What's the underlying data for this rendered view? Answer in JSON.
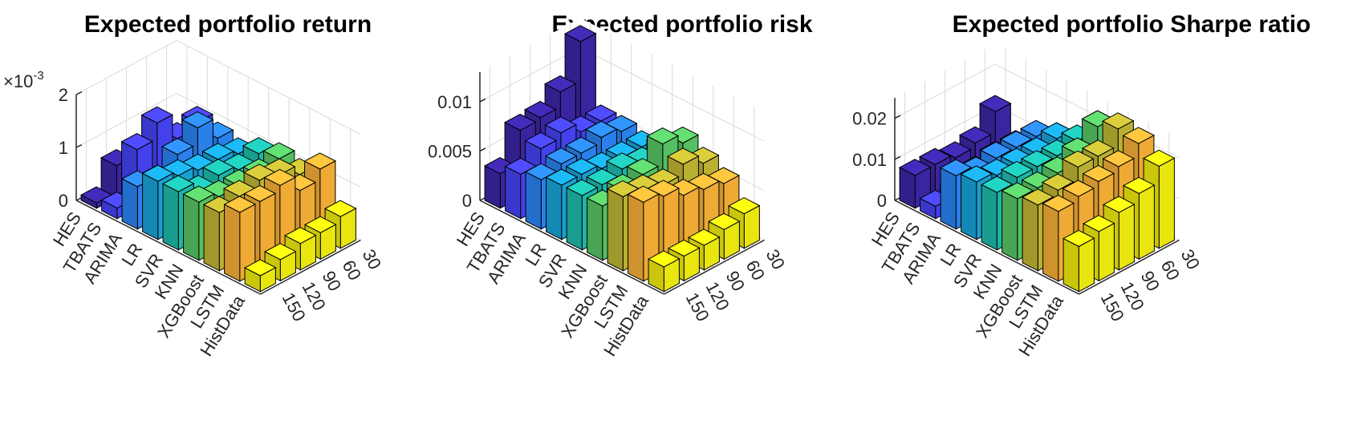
{
  "chart_data": [
    {
      "type": "bar3d",
      "title": "Expected portfolio return",
      "exponent_label": "×10",
      "exponent_sup": "-3",
      "zlim": [
        0,
        2
      ],
      "zticks": [
        0,
        1,
        2
      ],
      "ztick_labels": [
        "0",
        "1",
        "2"
      ],
      "methods": [
        "HES",
        "TBATS",
        "ARIMA",
        "LR",
        "SVR",
        "KNN",
        "XGBoost",
        "LSTM",
        "HistData"
      ],
      "windows": [
        "30",
        "60",
        "90",
        "120",
        "150"
      ],
      "values": [
        [
          0.2,
          0.5,
          0.2,
          0.6,
          0.1
        ],
        [
          1.0,
          0.9,
          1.4,
          1.1,
          0.2
        ],
        [
          0.9,
          1.3,
          1.0,
          0.7,
          0.8
        ],
        [
          0.8,
          0.9,
          0.9,
          1.0,
          1.1
        ],
        [
          1.0,
          0.9,
          1.0,
          0.9,
          1.1
        ],
        [
          1.1,
          1.0,
          1.0,
          1.0,
          1.1
        ],
        [
          1.0,
          1.2,
          1.3,
          1.2,
          1.1
        ],
        [
          1.3,
          1.1,
          1.4,
          1.3,
          1.3
        ],
        [
          0.6,
          0.5,
          0.5,
          0.4,
          0.3
        ]
      ]
    },
    {
      "type": "bar3d",
      "title": "Expected portfolio risk",
      "zlim": [
        0,
        0.013
      ],
      "zticks": [
        0,
        0.005,
        0.01
      ],
      "ztick_labels": [
        "0",
        "0.005",
        "0.01"
      ],
      "methods": [
        "HES",
        "TBATS",
        "ARIMA",
        "LR",
        "SVR",
        "KNN",
        "XGBoost",
        "LSTM",
        "HistData"
      ],
      "windows": [
        "30",
        "60",
        "90",
        "120",
        "150"
      ],
      "values": [
        [
          0.0125,
          0.0085,
          0.007,
          0.0068,
          0.0035
        ],
        [
          0.0055,
          0.0055,
          0.0065,
          0.006,
          0.0045
        ],
        [
          0.0055,
          0.006,
          0.0055,
          0.0055,
          0.005
        ],
        [
          0.005,
          0.005,
          0.005,
          0.0055,
          0.0055
        ],
        [
          0.006,
          0.0055,
          0.006,
          0.0055,
          0.0055
        ],
        [
          0.0075,
          0.0085,
          0.0065,
          0.006,
          0.0055
        ],
        [
          0.0065,
          0.0075,
          0.0065,
          0.007,
          0.0075
        ],
        [
          0.0055,
          0.006,
          0.0065,
          0.0075,
          0.008
        ],
        [
          0.0035,
          0.003,
          0.0025,
          0.0025,
          0.0025
        ]
      ]
    },
    {
      "type": "bar3d",
      "title": "Expected portfolio Sharpe ratio",
      "zlim": [
        0,
        0.025
      ],
      "zticks": [
        0,
        0.01,
        0.02
      ],
      "ztick_labels": [
        "0",
        "0.01",
        "0.02"
      ],
      "methods": [
        "HES",
        "TBATS",
        "ARIMA",
        "LR",
        "SVR",
        "KNN",
        "XGBoost",
        "LSTM",
        "HistData"
      ],
      "windows": [
        "30",
        "60",
        "90",
        "120",
        "150"
      ],
      "values": [
        [
          0.013,
          0.008,
          0.007,
          0.008,
          0.008
        ],
        [
          0.007,
          0.007,
          0.006,
          0.004,
          0.003
        ],
        [
          0.012,
          0.012,
          0.012,
          0.011,
          0.013
        ],
        [
          0.014,
          0.013,
          0.013,
          0.013,
          0.014
        ],
        [
          0.016,
          0.015,
          0.015,
          0.015,
          0.014
        ],
        [
          0.022,
          0.018,
          0.016,
          0.015,
          0.015
        ],
        [
          0.024,
          0.02,
          0.02,
          0.017,
          0.016
        ],
        [
          0.023,
          0.02,
          0.019,
          0.018,
          0.017
        ],
        [
          0.02,
          0.016,
          0.014,
          0.012,
          0.011
        ]
      ]
    }
  ],
  "colors": {
    "methods": [
      "#3e26a8",
      "#4744f8",
      "#2c86f7",
      "#1aa7dd",
      "#1ebfb0",
      "#59c967",
      "#c3b935",
      "#fbb338",
      "#f5f10f"
    ],
    "axis": "#262626",
    "grid": "#dfdfdf",
    "edge": "#000000"
  }
}
